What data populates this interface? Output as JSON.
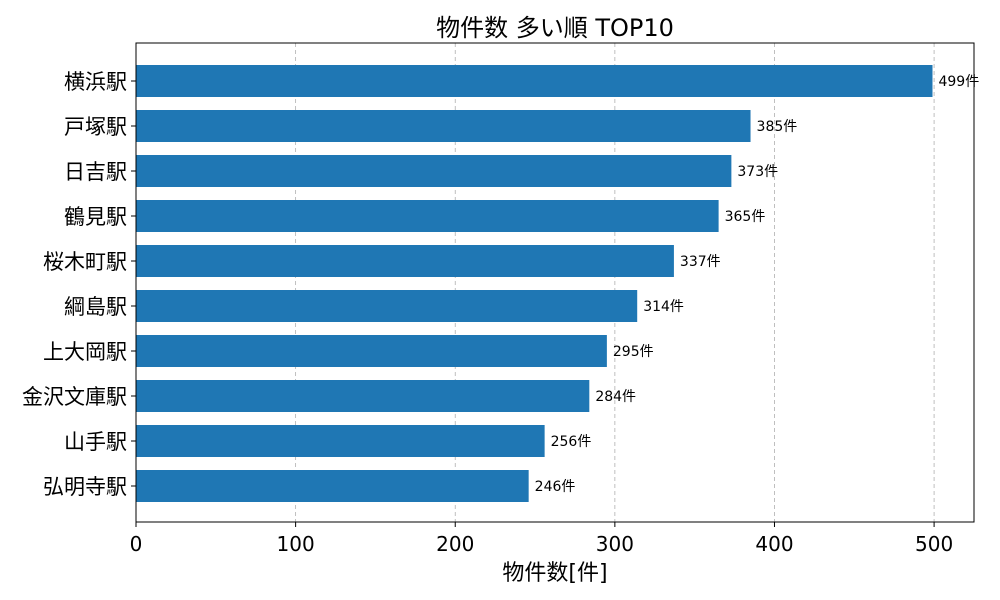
{
  "chart_data": {
    "type": "bar",
    "orientation": "horizontal",
    "title": "物件数 多い順 TOP10",
    "xlabel": "物件数[件]",
    "ylabel": "",
    "categories": [
      "横浜駅",
      "戸塚駅",
      "日吉駅",
      "鶴見駅",
      "桜木町駅",
      "綱島駅",
      "上大岡駅",
      "金沢文庫駅",
      "山手駅",
      "弘明寺駅"
    ],
    "values": [
      499,
      385,
      373,
      365,
      337,
      314,
      295,
      284,
      256,
      246
    ],
    "value_label_suffix": "件",
    "xlim": [
      0,
      525
    ],
    "xticks": [
      0,
      100,
      200,
      300,
      400,
      500
    ],
    "grid": "x-dashed",
    "bar_color": "#1f77b4",
    "legend": "none"
  }
}
